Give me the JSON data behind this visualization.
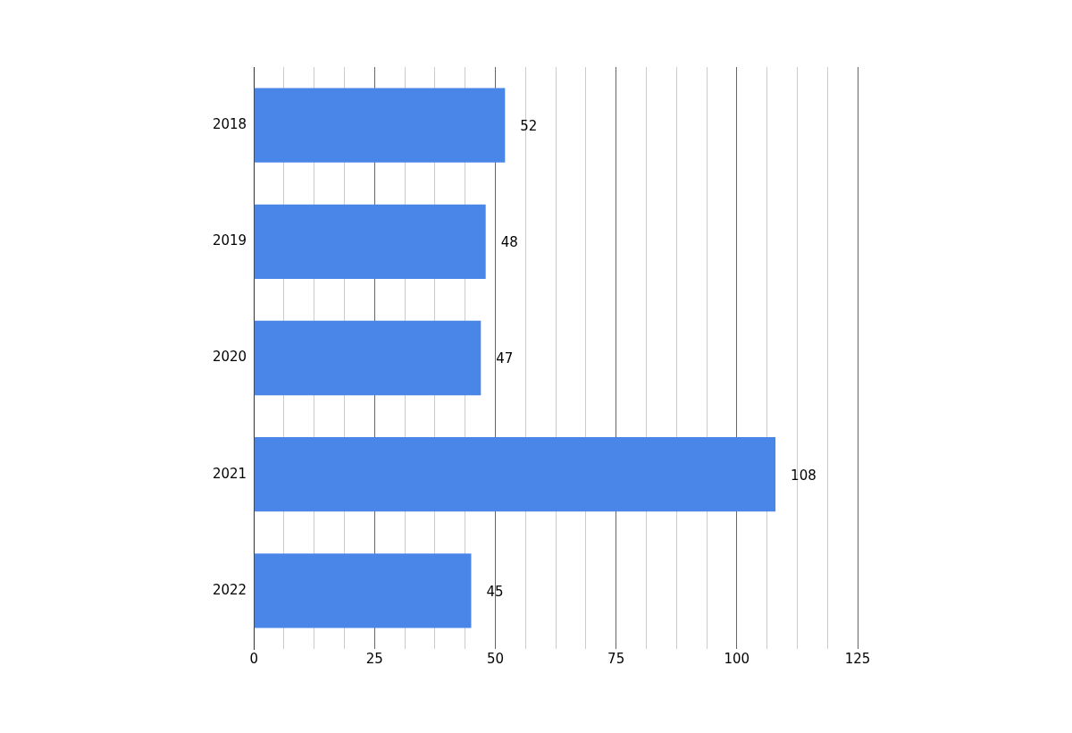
{
  "chart_data": {
    "type": "bar",
    "orientation": "horizontal",
    "categories": [
      "2018",
      "2019",
      "2020",
      "2021",
      "2022"
    ],
    "values": [
      52,
      48,
      47,
      108,
      45
    ],
    "color": "#4a86e8",
    "xlim": [
      0,
      125
    ],
    "xticks": [
      0,
      {
        "value": 6.25,
        "label": null
      },
      {
        "value": 12.5,
        "label": null
      },
      {
        "value": 18.75,
        "label": null
      },
      25,
      {
        "value": 31.25,
        "label": null
      },
      {
        "value": 37.5,
        "label": null
      },
      {
        "value": 43.75,
        "label": null
      },
      50,
      {
        "value": 56.25,
        "label": null
      },
      {
        "value": 62.5,
        "label": null
      },
      {
        "value": 68.75,
        "label": null
      },
      75,
      {
        "value": 81.25,
        "label": null
      },
      {
        "value": 87.5,
        "label": null
      },
      {
        "value": 93.75,
        "label": null
      },
      100,
      {
        "value": 106.25,
        "label": null
      },
      {
        "value": 112.5,
        "label": null
      },
      {
        "value": 118.75,
        "label": null
      },
      125
    ],
    "grid": "x",
    "data_labels": true
  }
}
